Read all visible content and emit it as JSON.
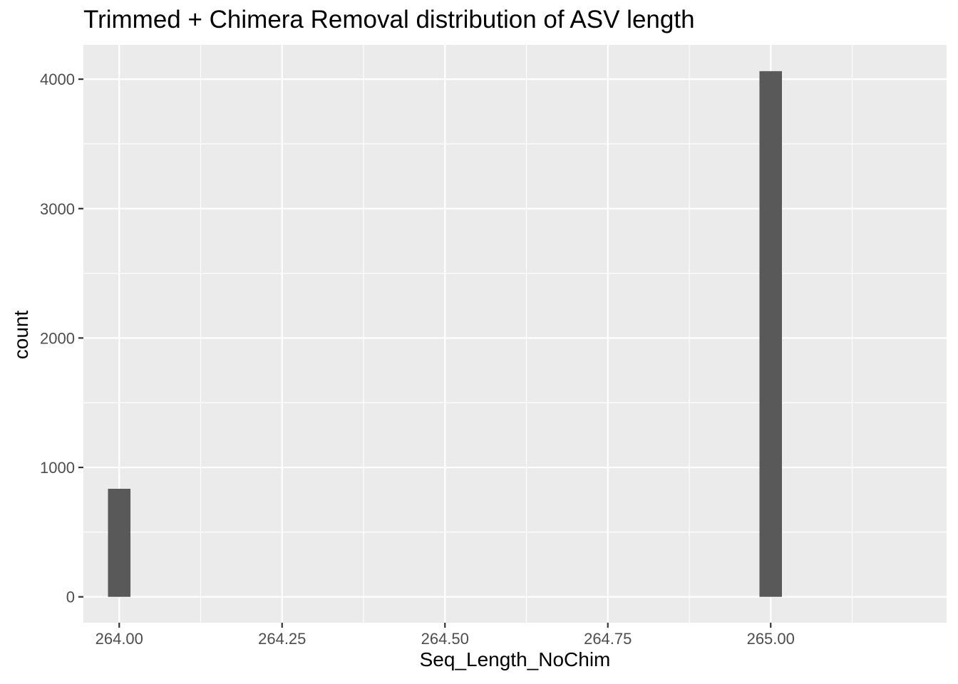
{
  "chart_data": {
    "type": "bar",
    "title": "Trimmed + Chimera Removal distribution of ASV length",
    "xlabel": "Seq_Length_NoChim",
    "ylabel": "count",
    "xlim": [
      263.945,
      265.27
    ],
    "ylim": [
      -200,
      4265
    ],
    "x_ticks": [
      264.0,
      264.25,
      264.5,
      264.75,
      265.0
    ],
    "x_tick_labels": [
      "264.00",
      "264.25",
      "264.50",
      "264.75",
      "265.00"
    ],
    "y_ticks": [
      0,
      1000,
      2000,
      3000,
      4000
    ],
    "y_tick_labels": [
      "0",
      "1000",
      "2000",
      "3000",
      "4000"
    ],
    "bin_width": 0.0345,
    "bars": [
      {
        "x": 264.0,
        "count": 835
      },
      {
        "x": 265.0,
        "count": 4062
      }
    ],
    "grid": true,
    "legend": "none"
  },
  "colors": {
    "panel_background": "#EBEBEB",
    "grid_major": "#FFFFFF",
    "bar_fill": "#595959",
    "tick_text": "#4D4D4D",
    "tick_mark": "#333333"
  }
}
